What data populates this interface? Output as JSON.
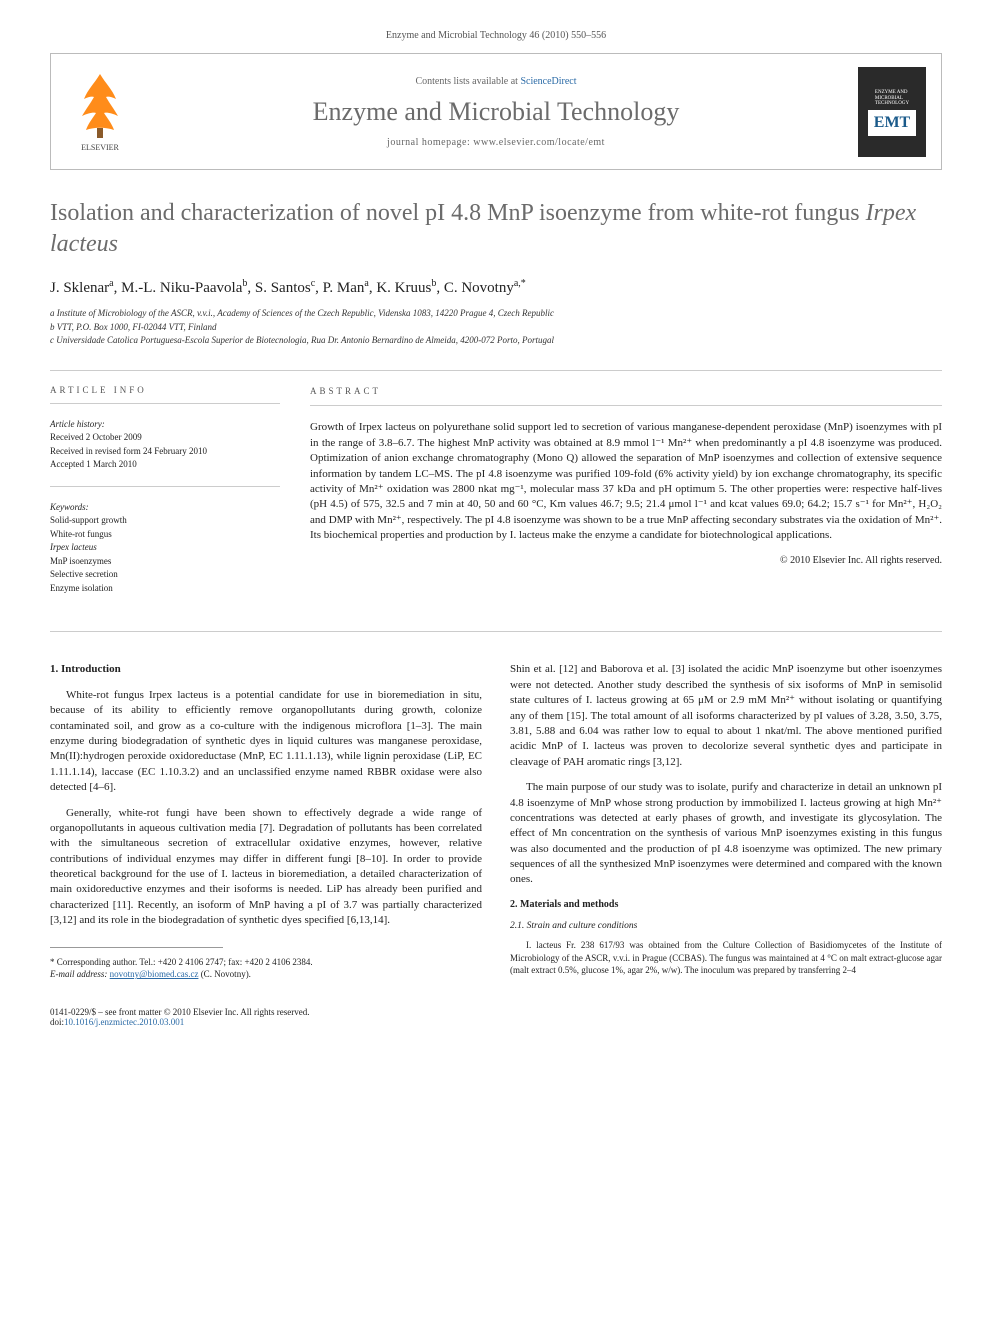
{
  "header": {
    "pageInfo": "Enzyme and Microbial Technology 46 (2010) 550–556"
  },
  "journalBox": {
    "contentsAvail": "Contents lists available at ",
    "sciDirect": "ScienceDirect",
    "journalTitle": "Enzyme and Microbial Technology",
    "homepageLabel": "journal homepage: ",
    "homepageUrl": "www.elsevier.com/locate/emt",
    "emtLabel1": "ENZYME AND",
    "emtLabel2": "MICROBIAL",
    "emtLabel3": "TECHNOLOGY",
    "emtAbbrev": "EMT"
  },
  "article": {
    "titlePart1": "Isolation and characterization of novel pI 4.8 MnP isoenzyme from white-rot fungus ",
    "titleItalic": "Irpex lacteus",
    "authorsHtml": "J. Sklenar<sup>a</sup>, M.-L. Niku-Paavola<sup>b</sup>, S. Santos<sup>c</sup>, P. Man<sup>a</sup>, K. Kruus<sup>b</sup>, C. Novotny<sup>a,*</sup>",
    "affA": "a Institute of Microbiology of the ASCR, v.v.i., Academy of Sciences of the Czech Republic, Videnska 1083, 14220 Prague 4, Czech Republic",
    "affB": "b VTT, P.O. Box 1000, FI-02044 VTT, Finland",
    "affC": "c Universidade Catolica Portuguesa-Escola Superior de Biotecnologia, Rua Dr. Antonio Bernardino de Almeida, 4200-072 Porto, Portugal"
  },
  "info": {
    "articleInfoHeading": "article info",
    "historyLabel": "Article history:",
    "received": "Received 2 October 2009",
    "revised": "Received in revised form 24 February 2010",
    "accepted": "Accepted 1 March 2010",
    "keywordsLabel": "Keywords:",
    "kw1": "Solid-support growth",
    "kw2": "White-rot fungus",
    "kw3": "Irpex lacteus",
    "kw4": "MnP isoenzymes",
    "kw5": "Selective secretion",
    "kw6": "Enzyme isolation"
  },
  "abstract": {
    "heading": "abstract",
    "text": "Growth of Irpex lacteus on polyurethane solid support led to secretion of various manganese-dependent peroxidase (MnP) isoenzymes with pI in the range of 3.8–6.7. The highest MnP activity was obtained at 8.9 mmol l⁻¹ Mn²⁺ when predominantly a pI 4.8 isoenzyme was produced. Optimization of anion exchange chromatography (Mono Q) allowed the separation of MnP isoenzymes and collection of extensive sequence information by tandem LC–MS. The pI 4.8 isoenzyme was purified 109-fold (6% activity yield) by ion exchange chromatography, its specific activity of Mn²⁺ oxidation was 2800 nkat mg⁻¹, molecular mass 37 kDa and pH optimum 5. The other properties were: respective half-lives (pH 4.5) of 575, 32.5 and 7 min at 40, 50 and 60 °C, Km values 46.7; 9.5; 21.4 μmol l⁻¹ and kcat values 69.0; 64.2; 15.7 s⁻¹ for Mn²⁺, H₂O₂ and DMP with Mn²⁺, respectively. The pI 4.8 isoenzyme was shown to be a true MnP affecting secondary substrates via the oxidation of Mn²⁺. Its biochemical properties and production by I. lacteus make the enzyme a candidate for biotechnological applications.",
    "copyright": "© 2010 Elsevier Inc. All rights reserved."
  },
  "body": {
    "introHeading": "1. Introduction",
    "p1": "White-rot fungus Irpex lacteus is a potential candidate for use in bioremediation in situ, because of its ability to efficiently remove organopollutants during growth, colonize contaminated soil, and grow as a co-culture with the indigenous microflora [1–3]. The main enzyme during biodegradation of synthetic dyes in liquid cultures was manganese peroxidase, Mn(II):hydrogen peroxide oxidoreductase (MnP, EC 1.11.1.13), while lignin peroxidase (LiP, EC 1.11.1.14), laccase (EC 1.10.3.2) and an unclassified enzyme named RBBR oxidase were also detected [4–6].",
    "p2": "Generally, white-rot fungi have been shown to effectively degrade a wide range of organopollutants in aqueous cultivation media [7]. Degradation of pollutants has been correlated with the simultaneous secretion of extracellular oxidative enzymes, however, relative contributions of individual enzymes may differ in different fungi [8–10]. In order to provide theoretical background for the use of I. lacteus in bioremediation, a detailed characterization of main oxidoreductive enzymes and their isoforms is needed. LiP has already been purified and characterized [11]. Recently, an isoform of MnP having a pI of 3.7 was partially characterized [3,12] and its role in the biodegradation of synthetic dyes specified [6,13,14].",
    "p3": "Shin et al. [12] and Baborova et al. [3] isolated the acidic MnP isoenzyme but other isoenzymes were not detected. Another study described the synthesis of six isoforms of MnP in semisolid state cultures of I. lacteus growing at 65 μM or 2.9 mM Mn²⁺ without isolating or quantifying any of them [15]. The total amount of all isoforms characterized by pI values of 3.28, 3.50, 3.75, 3.81, 5.88 and 6.04 was rather low to equal to about 1 nkat/ml. The above mentioned purified acidic MnP of I. lacteus was proven to decolorize several synthetic dyes and participate in cleavage of PAH aromatic rings [3,12].",
    "p4": "The main purpose of our study was to isolate, purify and characterize in detail an unknown pI 4.8 isoenzyme of MnP whose strong production by immobilized I. lacteus growing at high Mn²⁺ concentrations was detected at early phases of growth, and investigate its glycosylation. The effect of Mn concentration on the synthesis of various MnP isoenzymes existing in this fungus was also documented and the production of pI 4.8 isoenzyme was optimized. The new primary sequences of all the synthesized MnP isoenzymes were determined and compared with the known ones.",
    "matHeading": "2. Materials and methods",
    "strainHeading": "2.1. Strain and culture conditions",
    "p5": "I. lacteus Fr. 238 617/93 was obtained from the Culture Collection of Basidiomycetes of the Institute of Microbiology of the ASCR, v.v.i. in Prague (CCBAS). The fungus was maintained at 4 °C on malt extract-glucose agar (malt extract 0.5%, glucose 1%, agar 2%, w/w). The inoculum was prepared by transferring 2–4"
  },
  "footnote": {
    "corr": "* Corresponding author. Tel.: +420 2 4106 2747; fax: +420 2 4106 2384.",
    "emailLabel": "E-mail address: ",
    "email": "novotny@biomed.cas.cz",
    "emailAuthor": " (C. Novotny)."
  },
  "footer": {
    "left": "0141-0229/$ – see front matter © 2010 Elsevier Inc. All rights reserved.",
    "doiLabel": "doi:",
    "doi": "10.1016/j.enzmictec.2010.03.001"
  },
  "colors": {
    "linkColor": "#2a6aa6",
    "greyTitle": "#6b6b6b",
    "borderGrey": "#bbb",
    "elsevierOrange": "#ff8c1a"
  }
}
